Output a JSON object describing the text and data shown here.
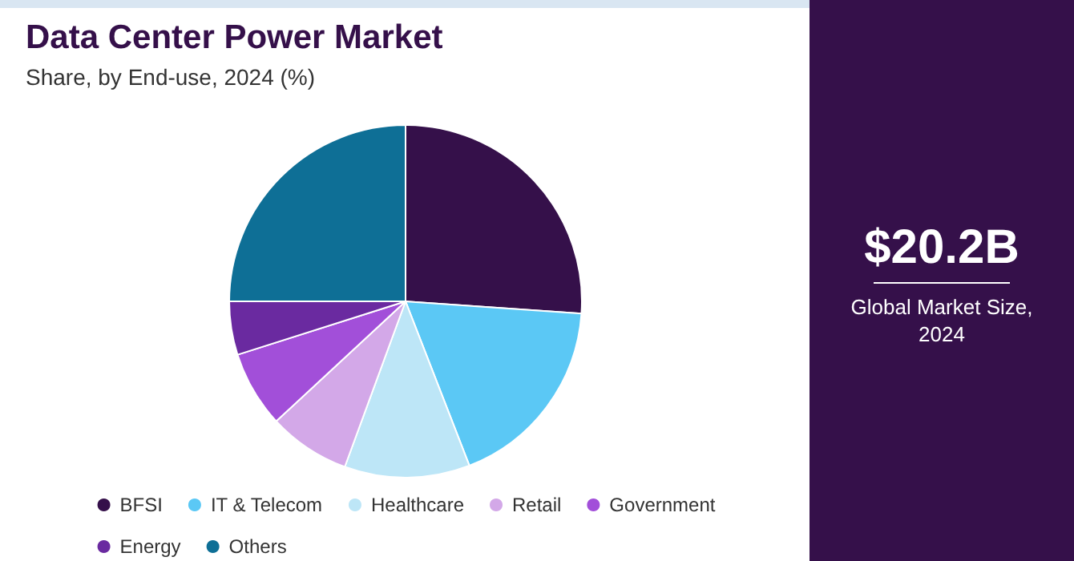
{
  "chart_data": {
    "type": "pie",
    "title": "Data Center Power Market",
    "subtitle": "Share, by End-use, 2024 (%)",
    "categories": [
      "BFSI",
      "IT & Telecom",
      "Healthcare",
      "Retail",
      "Government",
      "Energy",
      "Others"
    ],
    "values": [
      26.1,
      18,
      11.5,
      7.5,
      7,
      4.9,
      25
    ],
    "colors": [
      "#35104a",
      "#5bc8f5",
      "#bde6f7",
      "#d3a8e8",
      "#a24fd9",
      "#6a2aa0",
      "#0e6f96"
    ],
    "legend": "bottom",
    "annotations": [
      "$20.2B",
      "Global Market Size, 2024"
    ]
  }
}
